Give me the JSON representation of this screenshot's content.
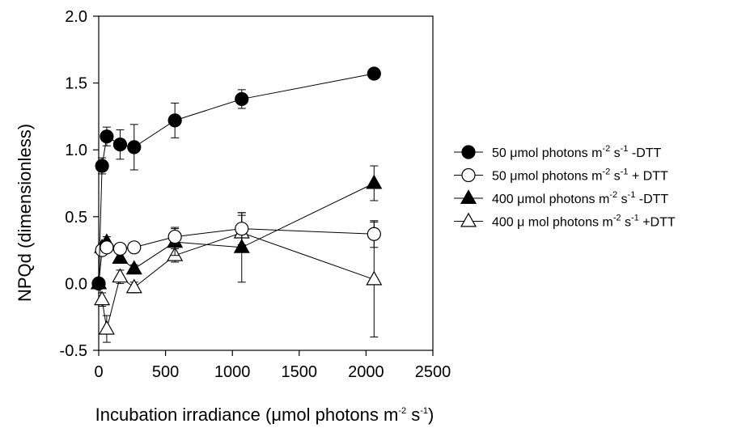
{
  "chart_data": {
    "type": "scatter",
    "xlabel": {
      "pre": "Incubation irradiance (",
      "mu": "μ",
      "post": "mol photons m",
      "sup1": "-2",
      "mid": " s",
      "sup2": "-1",
      "end": ")"
    },
    "ylabel": "NPQd (dimensionless)",
    "xlim": [
      0,
      2500
    ],
    "ylim": [
      -0.5,
      2.0
    ],
    "xticks": [
      "0",
      "500",
      "1000",
      "1500",
      "2000",
      "2500"
    ],
    "yticks": [
      "-0.5",
      "0.0",
      "0.5",
      "1.0",
      "1.5",
      "2.0"
    ],
    "xtick_values": [
      0,
      500,
      1000,
      1500,
      2000,
      2500
    ],
    "ytick_values": [
      -0.5,
      0.0,
      0.5,
      1.0,
      1.5,
      2.0
    ],
    "grid": false,
    "legend_position": "right",
    "series": [
      {
        "marker": "circle",
        "fill": "#000000",
        "legend": {
          "pre": "50  μmol photons m",
          "sup1": "-2",
          "mid": " s",
          "sup2": "-1",
          "post": " -DTT"
        },
        "x": [
          0,
          25,
          60,
          160,
          265,
          570,
          1070,
          2060
        ],
        "y": [
          0.0,
          0.88,
          1.1,
          1.04,
          1.02,
          1.22,
          1.38,
          1.57
        ],
        "err": [
          0.0,
          0.06,
          0.07,
          0.11,
          0.17,
          0.13,
          0.07,
          0.0
        ]
      },
      {
        "marker": "circle",
        "fill": "#ffffff",
        "legend": {
          "pre": "50  μmol photons m",
          "sup1": "-2",
          "mid": " s",
          "sup2": "-1",
          "post": " + DTT"
        },
        "x": [
          0,
          25,
          60,
          160,
          265,
          570,
          1070,
          2060
        ],
        "y": [
          0.0,
          0.25,
          0.27,
          0.26,
          0.27,
          0.35,
          0.41,
          0.37
        ],
        "err": [
          0.0,
          0.03,
          0.03,
          0.03,
          0.02,
          0.07,
          0.12,
          0.1
        ]
      },
      {
        "marker": "triangle",
        "fill": "#000000",
        "legend": {
          "pre": "400 μmol photons m",
          "sup1": "-2",
          "mid": " s",
          "sup2": "-1",
          "post": " -DTT"
        },
        "x": [
          0,
          25,
          60,
          160,
          265,
          570,
          1070,
          2060
        ],
        "y": [
          0.0,
          0.27,
          0.31,
          0.19,
          0.11,
          0.31,
          0.27,
          0.75
        ],
        "err": [
          0.0,
          0.03,
          0.04,
          0.03,
          0.03,
          0.1,
          0.26,
          0.13
        ]
      },
      {
        "marker": "triangle",
        "fill": "#ffffff",
        "legend": {
          "pre": "400 μ mol photons m",
          "sup1": "-2",
          "mid": " s",
          "sup2": "-1",
          "post": " +DTT"
        },
        "x": [
          0,
          25,
          60,
          160,
          265,
          570,
          1070,
          2060
        ],
        "y": [
          0.0,
          -0.12,
          -0.34,
          0.05,
          -0.03,
          0.21,
          0.38,
          0.03
        ],
        "err": [
          0.0,
          0.05,
          0.1,
          0.05,
          0.04,
          0.05,
          0.13,
          0.43
        ]
      }
    ]
  }
}
